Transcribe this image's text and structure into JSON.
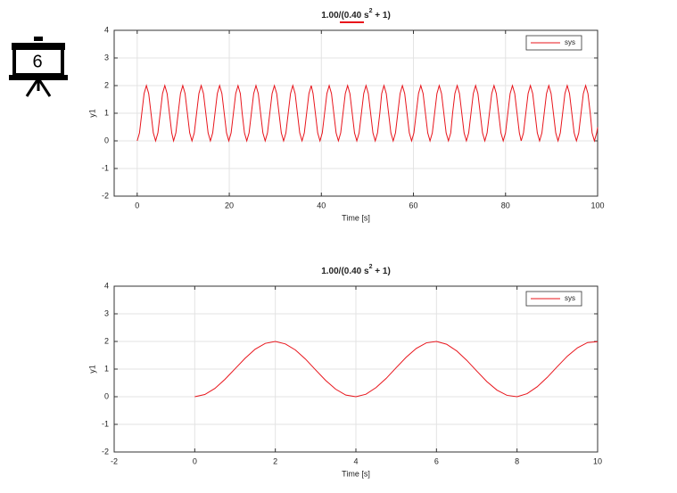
{
  "slide_number": "6",
  "chart_data": [
    {
      "type": "line",
      "title_parts": [
        "1.00/(0.40 s",
        "2",
        " + 1)"
      ],
      "xlabel": "Time [s]",
      "ylabel": "y1",
      "xlim": [
        -5,
        100
      ],
      "ylim": [
        -2,
        4
      ],
      "xticks": [
        0,
        20,
        40,
        60,
        80,
        100
      ],
      "yticks": [
        -2,
        -1,
        0,
        1,
        2,
        3,
        4
      ],
      "grid": true,
      "legend": "upper right",
      "x": [
        0,
        0.5,
        1.0,
        1.5,
        2.0,
        2.5,
        3.0,
        3.5,
        4.0,
        4.5,
        5.0,
        5.5,
        6.0,
        6.5,
        7.0,
        7.5,
        7.9,
        8.4,
        8.9,
        9.4,
        9.9,
        10.4,
        10.9,
        11.4,
        11.9,
        12.4,
        12.9,
        13.4,
        13.9,
        14.4,
        14.9,
        15.4,
        15.9,
        16.4,
        16.9,
        17.4,
        17.9,
        18.4,
        18.9,
        19.4,
        19.9,
        20.4,
        20.9,
        21.4,
        21.9,
        22.4,
        22.8,
        23.3,
        23.8,
        24.3,
        24.8,
        25.3,
        25.8,
        26.3,
        26.8,
        27.3,
        27.8,
        28.3,
        28.8,
        29.3,
        29.8,
        30.3,
        30.8,
        31.3,
        31.8,
        32.3,
        32.8,
        33.3,
        33.8,
        34.3,
        34.8,
        35.3,
        35.8,
        36.3,
        36.8,
        37.3,
        37.8,
        38.2,
        38.7,
        39.2,
        39.7,
        40.2,
        40.7,
        41.2,
        41.7,
        42.2,
        42.7,
        43.2,
        43.7,
        44.2,
        44.7,
        45.2,
        45.7,
        46.2,
        46.7,
        47.2,
        47.7,
        48.2,
        48.7,
        49.2,
        49.7,
        50.2,
        50.7,
        51.2,
        51.7,
        52.2,
        52.7,
        53.1,
        53.6,
        54.1,
        54.6,
        55.1,
        55.6,
        56.1,
        56.6,
        57.1,
        57.6,
        58.1,
        58.6,
        59.1,
        59.6,
        60.1,
        60.6,
        61.1,
        61.6,
        62.1,
        62.6,
        63.1,
        63.6,
        64.1,
        64.6,
        65.1,
        65.6,
        66.1,
        66.6,
        67.1,
        67.6,
        68.1,
        68.5,
        69.0,
        69.5,
        70.0,
        70.5,
        71.0,
        71.5,
        72.0,
        72.5,
        73.0,
        73.5,
        74.0,
        74.5,
        75.0,
        75.5,
        76.0,
        76.5,
        77.0,
        77.5,
        78.0,
        78.5,
        79.0,
        79.5,
        80.0,
        80.5,
        81.0,
        81.5,
        82.0,
        82.5,
        83.0,
        83.4,
        83.9,
        84.4,
        84.9,
        85.4,
        85.9,
        86.4,
        86.9,
        87.4,
        87.9,
        88.4,
        88.9,
        89.4,
        89.9,
        90.4,
        90.9,
        91.4,
        91.9,
        92.4,
        92.9,
        93.4,
        93.9,
        94.4,
        94.9,
        95.4,
        95.9,
        96.4,
        96.9,
        97.4,
        97.9,
        98.4,
        98.8,
        99.3,
        99.8,
        100
      ],
      "series": [
        {
          "name": "sys",
          "color": "#e8141b",
          "values": [
            0,
            0.29,
            1,
            1.71,
            2,
            1.71,
            1,
            0.29,
            0,
            0.29,
            1,
            1.71,
            2,
            1.71,
            1,
            0.29,
            0,
            0.29,
            1,
            1.71,
            2,
            1.71,
            1,
            0.29,
            0,
            0.29,
            1,
            1.71,
            2,
            1.71,
            1,
            0.29,
            0,
            0.29,
            1,
            1.71,
            2,
            1.71,
            1,
            0.29,
            0,
            0.29,
            1,
            1.71,
            2,
            1.71,
            1,
            0.29,
            0,
            0.29,
            1,
            1.71,
            2,
            1.71,
            1,
            0.29,
            0,
            0.29,
            1,
            1.71,
            2,
            1.71,
            1,
            0.29,
            0,
            0.29,
            1,
            1.71,
            2,
            1.71,
            1,
            0.29,
            0,
            0.29,
            1,
            1.71,
            2,
            1.71,
            1,
            0.29,
            0,
            0.29,
            1,
            1.71,
            2,
            1.71,
            1,
            0.29,
            0,
            0.29,
            1,
            1.71,
            2,
            1.71,
            1,
            0.29,
            0,
            0.29,
            1,
            1.71,
            2,
            1.71,
            1,
            0.29,
            0,
            0.29,
            1,
            1.71,
            2,
            1.71,
            1,
            0.29,
            0,
            0.29,
            1,
            1.71,
            2,
            1.71,
            1,
            0.29,
            0,
            0.29,
            1,
            1.71,
            2,
            1.71,
            1,
            0.29,
            0,
            0.29,
            1,
            1.71,
            2,
            1.71,
            1,
            0.29,
            0,
            0.29,
            1,
            1.71,
            2,
            1.71,
            1,
            0.29,
            0,
            0.29,
            1,
            1.71,
            2,
            1.71,
            1,
            0.29,
            0,
            0.29,
            1,
            1.71,
            2,
            1.71,
            1,
            0.29,
            0,
            0.29,
            1,
            1.71,
            2,
            1.71,
            1,
            0.29,
            0,
            0.29,
            1,
            1.71,
            2,
            1.71,
            1,
            0.29,
            0,
            0.29,
            1,
            1.71,
            2,
            1.71,
            1,
            0.29,
            0,
            0.29,
            1,
            1.71,
            2,
            1.71,
            1,
            0.29,
            0,
            0.29,
            1,
            1.71,
            2,
            1.71,
            1,
            0.29,
            0,
            0.29,
            0.49
          ]
        }
      ]
    },
    {
      "type": "line",
      "title_parts": [
        "1.00/(0.40 s",
        "2",
        " + 1)"
      ],
      "xlabel": "Time [s]",
      "ylabel": "y1",
      "xlim": [
        -2,
        10
      ],
      "ylim": [
        -2,
        4
      ],
      "xticks": [
        -2,
        0,
        2,
        4,
        6,
        8,
        10
      ],
      "yticks": [
        -2,
        -1,
        0,
        1,
        2,
        3,
        4
      ],
      "grid": true,
      "legend": "upper right",
      "x": [
        0,
        0.25,
        0.5,
        0.75,
        1,
        1.25,
        1.5,
        1.75,
        2,
        2.25,
        2.5,
        2.75,
        3,
        3.25,
        3.5,
        3.75,
        4,
        4.25,
        4.5,
        4.75,
        5,
        5.25,
        5.5,
        5.75,
        6,
        6.25,
        6.5,
        6.75,
        7,
        7.25,
        7.5,
        7.75,
        8,
        8.25,
        8.5,
        8.75,
        9,
        9.25,
        9.5,
        9.75,
        10
      ],
      "series": [
        {
          "name": "sys",
          "color": "#e8141b",
          "values": [
            0,
            0.08,
            0.3,
            0.63,
            1.01,
            1.39,
            1.72,
            1.93,
            2,
            1.91,
            1.69,
            1.36,
            0.97,
            0.59,
            0.27,
            0.06,
            0,
            0.09,
            0.33,
            0.66,
            1.05,
            1.43,
            1.75,
            1.95,
            2,
            1.9,
            1.66,
            1.32,
            0.93,
            0.55,
            0.24,
            0.05,
            0,
            0.11,
            0.36,
            0.7,
            1.09,
            1.47,
            1.77,
            1.96,
            1.99
          ]
        }
      ]
    }
  ]
}
